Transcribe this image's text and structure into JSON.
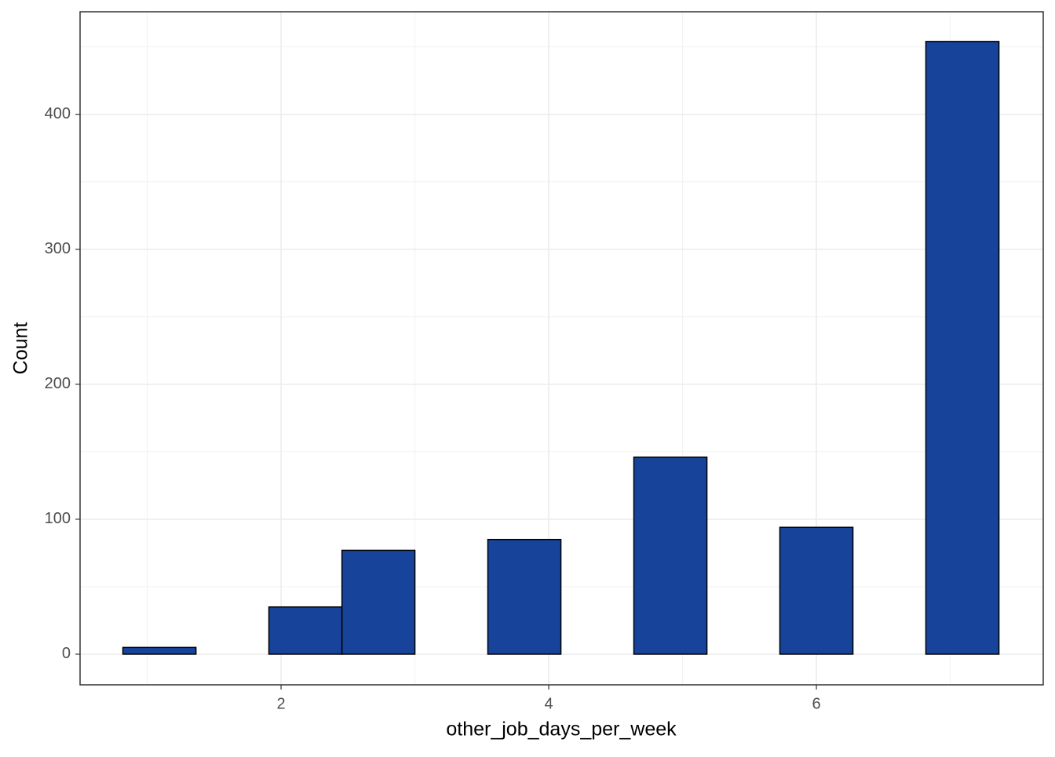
{
  "chart_data": {
    "type": "histogram",
    "x_label": "other_job_days_per_week",
    "y_label": "Count",
    "bins": [
      0.818,
      1.364,
      1.909,
      2.455,
      3.0,
      3.545,
      4.091,
      4.636,
      5.182,
      5.727,
      6.273,
      6.818,
      7.364
    ],
    "values": [
      5,
      0,
      35,
      77,
      0,
      85,
      0,
      146,
      0,
      94,
      0,
      454
    ],
    "color": "#17449a",
    "xlim": [
      0.498,
      7.695
    ],
    "xticks": [
      2,
      4,
      6
    ],
    "ylim": [
      -22.7,
      476
    ],
    "yticks": [
      0,
      100,
      200,
      300,
      400
    ],
    "grid": true
  }
}
